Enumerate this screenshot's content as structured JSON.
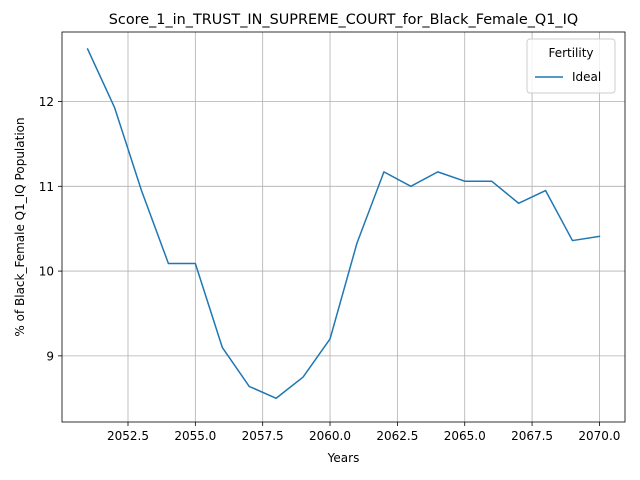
{
  "chart_data": {
    "type": "line",
    "title": "Score_1_in_TRUST_IN_SUPREME_COURT_for_Black_Female_Q1_IQ",
    "xlabel": "Years",
    "ylabel": "% of Black_Female Q1_IQ Population",
    "xlim": [
      2050.05,
      2070.95
    ],
    "ylim": [
      8.22,
      12.82
    ],
    "x_ticks": [
      2052.5,
      2055.0,
      2057.5,
      2060.0,
      2062.5,
      2065.0,
      2067.5,
      2070.0
    ],
    "x_tick_labels": [
      "2052.5",
      "2055.0",
      "2057.5",
      "2060.0",
      "2062.5",
      "2065.0",
      "2067.5",
      "2070.0"
    ],
    "y_ticks": [
      9,
      10,
      11,
      12
    ],
    "y_tick_labels": [
      "9",
      "10",
      "11",
      "12"
    ],
    "grid": true,
    "legend": {
      "title": "Fertility",
      "placement": "top-right"
    },
    "series": [
      {
        "name": "Ideal",
        "color": "#1f77b4",
        "x": [
          2051,
          2052,
          2053,
          2054,
          2055,
          2056,
          2057,
          2058,
          2059,
          2060,
          2061,
          2062,
          2063,
          2064,
          2065,
          2066,
          2067,
          2068,
          2069,
          2070
        ],
        "y": [
          12.62,
          11.93,
          10.95,
          10.09,
          10.09,
          9.1,
          8.64,
          8.5,
          8.75,
          9.2,
          10.33,
          11.17,
          11.0,
          11.17,
          11.06,
          11.06,
          10.8,
          10.95,
          10.36,
          10.41
        ]
      }
    ]
  }
}
